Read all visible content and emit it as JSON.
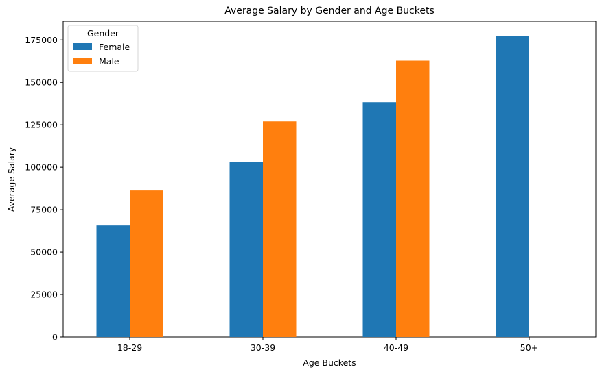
{
  "chart_data": {
    "type": "bar",
    "title": "Average Salary by Gender and Age Buckets",
    "xlabel": "Age Buckets",
    "ylabel": "Average Salary",
    "categories": [
      "18-29",
      "30-39",
      "40-49",
      "50+"
    ],
    "series": [
      {
        "name": "Female",
        "color": "#1f77b4",
        "values": [
          65700,
          102900,
          138300,
          177300
        ]
      },
      {
        "name": "Male",
        "color": "#ff7f0e",
        "values": [
          86300,
          127000,
          162800,
          null
        ]
      }
    ],
    "ylim": [
      0,
      186000
    ],
    "yticks": [
      0,
      25000,
      50000,
      75000,
      100000,
      125000,
      150000,
      175000
    ],
    "grid": false,
    "legend": {
      "title": "Gender",
      "placement": "top-left"
    }
  }
}
